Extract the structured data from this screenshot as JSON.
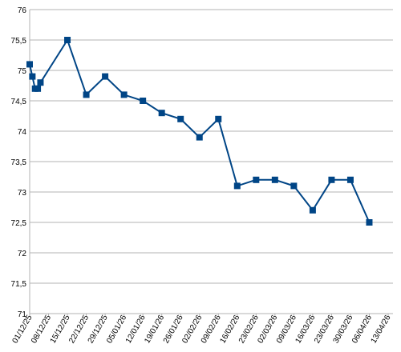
{
  "chart_data": {
    "type": "line",
    "x": [
      "01/12/25",
      "02/12/25",
      "03/12/25",
      "04/12/25",
      "05/12/25",
      "15/12/25",
      "22/12/25",
      "29/12/25",
      "05/01/26",
      "12/01/26",
      "19/01/26",
      "26/01/26",
      "02/02/26",
      "09/02/26",
      "16/02/26",
      "23/02/26",
      "02/03/26",
      "09/03/26",
      "16/03/26",
      "23/03/26",
      "30/03/26",
      "06/04/26"
    ],
    "series": [
      {
        "color": "#004586",
        "values": [
          75.1,
          74.9,
          74.7,
          74.7,
          74.8,
          75.5,
          74.6,
          74.9,
          74.6,
          74.5,
          74.3,
          74.2,
          73.9,
          74.2,
          73.1,
          73.2,
          73.2,
          73.1,
          72.7,
          73.2,
          73.2,
          72.5
        ]
      }
    ],
    "xlim": [
      "01/12/25",
      "13/04/26"
    ],
    "xticks": [
      "01/12/25",
      "08/12/25",
      "15/12/25",
      "22/12/25",
      "29/12/25",
      "05/01/26",
      "12/01/26",
      "19/01/26",
      "26/01/26",
      "02/02/26",
      "09/02/26",
      "16/02/26",
      "23/02/26",
      "02/03/26",
      "09/03/26",
      "16/03/26",
      "23/03/26",
      "30/03/26",
      "06/04/26",
      "13/04/26"
    ],
    "ylim": [
      71,
      76
    ],
    "yticks": [
      71,
      {
        "value": 71.5,
        "label": "71,5"
      },
      72,
      {
        "value": 72.5,
        "label": "72,5"
      },
      73,
      {
        "value": 73.5,
        "label": "73,5"
      },
      74,
      {
        "value": 74.5,
        "label": "74,5"
      },
      75,
      {
        "value": 75.5,
        "label": "75,5"
      },
      76
    ],
    "grid": true
  }
}
